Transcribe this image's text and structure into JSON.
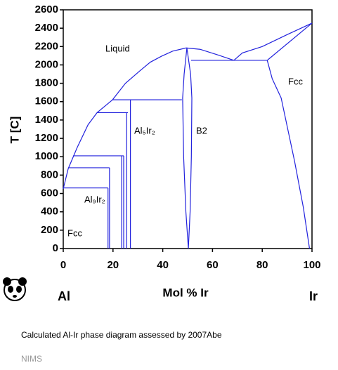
{
  "chart_data": {
    "type": "line",
    "ylabel": "T [C]",
    "xlabel": "Mol % Ir",
    "left_element": "Al",
    "right_element": "Ir",
    "annotations": [
      "Liquid",
      "Fcc",
      "Al₅Ir₂",
      "B2",
      "Al₉Ir₂",
      "Fcc"
    ],
    "caption": "Calculated Al-Ir phase diagram assessed by 2007Abe",
    "source": "NIMS",
    "xlim": [
      0,
      100
    ],
    "xticks": [
      0,
      20,
      40,
      60,
      80,
      100
    ],
    "ylim": [
      0,
      2600
    ],
    "yticks": [
      0,
      200,
      400,
      600,
      800,
      1000,
      1200,
      1400,
      1600,
      1800,
      2000,
      2200,
      2400,
      2600
    ],
    "color": "#2222dd",
    "series": [
      {
        "x": [
          0,
          2,
          5.6,
          10,
          13.6,
          19.8,
          25,
          31,
          35,
          39.5,
          44,
          49.4
        ],
        "values": [
          650,
          870,
          1100,
          1350,
          1480,
          1620,
          1800,
          1940,
          2030,
          2095,
          2150,
          2185
        ]
      },
      {
        "x": [
          49.4,
          55,
          62,
          68.6
        ],
        "values": [
          2185,
          2170,
          2110,
          2050
        ]
      },
      {
        "x": [
          68.6,
          72,
          80,
          90,
          100
        ],
        "values": [
          2050,
          2130,
          2200,
          2330,
          2455
        ]
      },
      {
        "x": [
          82,
          100
        ],
        "values": [
          2050,
          2455
        ]
      },
      {
        "x": [
          82,
          84,
          87.6,
          93,
          96.5,
          99
        ],
        "values": [
          2050,
          1850,
          1640,
          950,
          450,
          0
        ]
      },
      {
        "x": [
          49.7,
          48.6,
          48,
          48.4,
          49.3,
          50.3
        ],
        "values": [
          2185,
          1900,
          1640,
          1000,
          400,
          0
        ]
      },
      {
        "x": [
          49.7,
          51.2,
          51.7,
          51.5,
          51,
          50.3
        ],
        "values": [
          2185,
          1900,
          1640,
          1000,
          400,
          0
        ]
      },
      {
        "x": [
          51.4,
          82
        ],
        "values": [
          2050,
          2050
        ]
      },
      {
        "x": [
          19.8,
          47.7
        ],
        "values": [
          1620,
          1620
        ]
      },
      {
        "x": [
          27,
          27
        ],
        "values": [
          1620,
          0
        ]
      },
      {
        "x": [
          13.6,
          26
        ],
        "values": [
          1480,
          1480
        ]
      },
      {
        "x": [
          25.5,
          25.5
        ],
        "values": [
          1480,
          0
        ]
      },
      {
        "x": [
          4,
          24.3
        ],
        "values": [
          1010,
          1010
        ]
      },
      {
        "x": [
          23.5,
          23.5
        ],
        "values": [
          1010,
          0
        ]
      },
      {
        "x": [
          24.3,
          24.3
        ],
        "values": [
          1010,
          0
        ]
      },
      {
        "x": [
          2,
          18.6
        ],
        "values": [
          880,
          880
        ]
      },
      {
        "x": [
          18.6,
          18.6
        ],
        "values": [
          880,
          0
        ]
      },
      {
        "x": [
          0,
          18
        ],
        "values": [
          660,
          660
        ]
      },
      {
        "x": [
          18,
          18
        ],
        "values": [
          660,
          0
        ]
      }
    ]
  }
}
